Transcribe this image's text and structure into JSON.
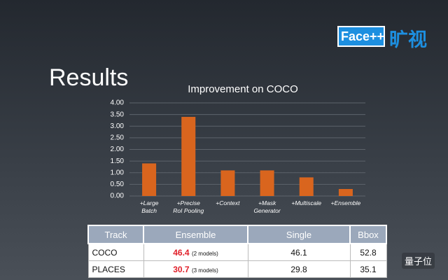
{
  "slide_title": "Results",
  "logo": {
    "brand": "Face++",
    "chinese": "旷视"
  },
  "watermark": "量子位",
  "chart_data": {
    "type": "bar",
    "title": "Improvement on COCO",
    "categories": [
      "+Large\nBatch",
      "+Precise\nRoI Pooling",
      "+Context",
      "+Mask\nGenerator",
      "+Multiscale",
      "+Ensemble"
    ],
    "values": [
      1.4,
      3.4,
      1.1,
      1.1,
      0.8,
      0.3
    ],
    "color": "#d9651e",
    "ylim": [
      0,
      4
    ],
    "yticks": [
      {
        "value": 0,
        "label": "0.00"
      },
      {
        "value": 0.5,
        "label": "0.50"
      },
      {
        "value": 1,
        "label": "1.00"
      },
      {
        "value": 1.5,
        "label": "1.50"
      },
      {
        "value": 2,
        "label": "2.00"
      },
      {
        "value": 2.5,
        "label": "2.50"
      },
      {
        "value": 3,
        "label": "3.00"
      },
      {
        "value": 3.5,
        "label": "3.50"
      },
      {
        "value": 4,
        "label": "4.00"
      }
    ],
    "grid": true
  },
  "table": {
    "header": [
      "Track",
      "Ensemble",
      "Single",
      "Bbox"
    ],
    "rows": [
      [
        "COCO",
        "46.4",
        "(2 models)",
        "46.1",
        "52.8"
      ],
      [
        "PLACES",
        "30.7",
        "(3 models)",
        "29.8",
        "35.1"
      ]
    ]
  }
}
